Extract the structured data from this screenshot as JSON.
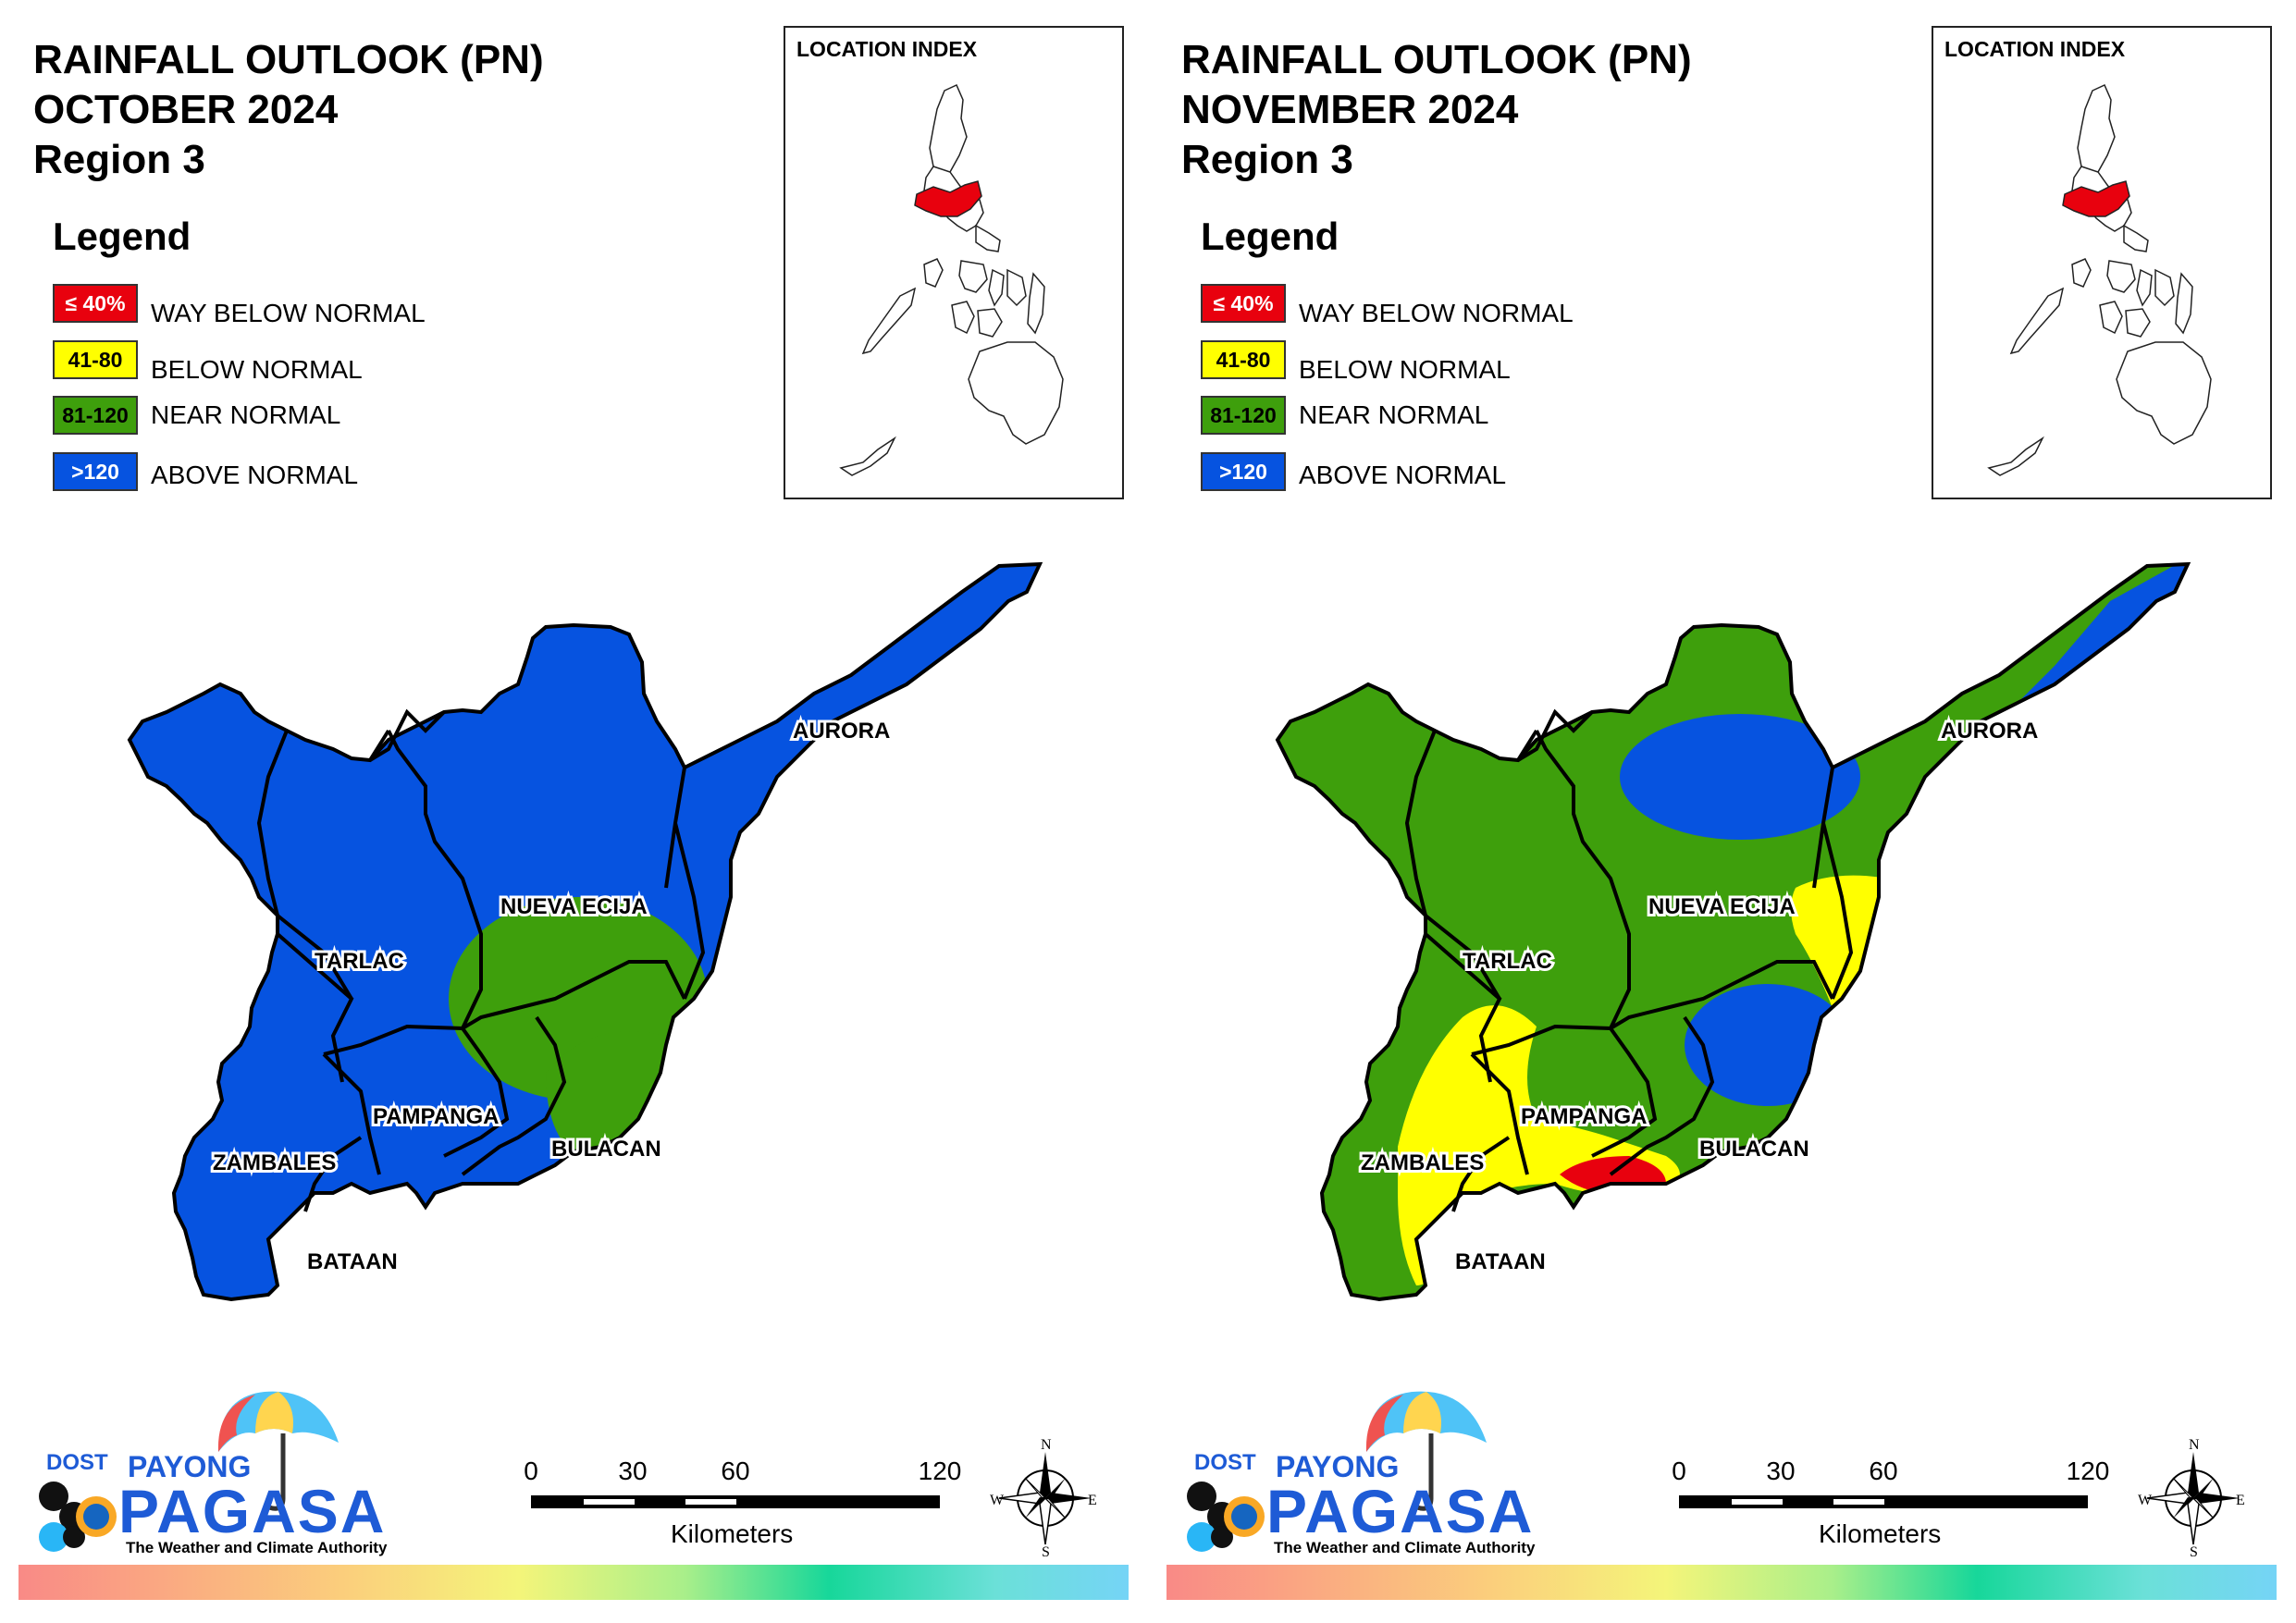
{
  "colors": {
    "way_below": "#e8010e",
    "below": "#ffff00",
    "near": "#3e9f0c",
    "above": "#0653e0"
  },
  "panels": [
    {
      "title_line1": "RAINFALL OUTLOOK (PN)",
      "title_line2": "OCTOBER 2024",
      "title_line3": "Region 3",
      "legend_title": "Legend",
      "legend": [
        {
          "range": "≤ 40%",
          "label": "WAY BELOW NORMAL",
          "color": "#e8010e",
          "text_color": "#ffffff"
        },
        {
          "range": "41-80",
          "label": "BELOW NORMAL",
          "color": "#ffff00",
          "text_color": "#000000"
        },
        {
          "range": "81-120",
          "label": "NEAR NORMAL",
          "color": "#3e9f0c",
          "text_color": "#000000"
        },
        {
          "range": ">120",
          "label": "ABOVE NORMAL",
          "color": "#0653e0",
          "text_color": "#ffffff"
        }
      ],
      "inset_title": "LOCATION INDEX",
      "provinces": {
        "aurora": "AURORA",
        "nueva_ecija": "NUEVA ECIJA",
        "tarlac": "TARLAC",
        "pampanga": "PAMPANGA",
        "zambales": "ZAMBALES",
        "bulacan": "BULACAN",
        "bataan": "BATAAN"
      },
      "scale": {
        "ticks": [
          "0",
          "30",
          "60",
          "120"
        ],
        "unit": "Kilometers"
      },
      "compass": {
        "n": "N",
        "e": "E",
        "s": "S",
        "w": "W"
      },
      "logo": {
        "dost": "DOST",
        "payong": "PAYONG",
        "pagasa": "PAGASA",
        "tagline": "The Weather and Climate Authority"
      },
      "outlook": "above"
    },
    {
      "title_line1": "RAINFALL OUTLOOK (PN)",
      "title_line2": "NOVEMBER 2024",
      "title_line3": "Region 3",
      "legend_title": "Legend",
      "legend": [
        {
          "range": "≤ 40%",
          "label": "WAY BELOW NORMAL",
          "color": "#e8010e",
          "text_color": "#ffffff"
        },
        {
          "range": "41-80",
          "label": "BELOW NORMAL",
          "color": "#ffff00",
          "text_color": "#000000"
        },
        {
          "range": "81-120",
          "label": "NEAR NORMAL",
          "color": "#3e9f0c",
          "text_color": "#000000"
        },
        {
          "range": ">120",
          "label": "ABOVE NORMAL",
          "color": "#0653e0",
          "text_color": "#ffffff"
        }
      ],
      "inset_title": "LOCATION INDEX",
      "provinces": {
        "aurora": "AURORA",
        "nueva_ecija": "NUEVA ECIJA",
        "tarlac": "TARLAC",
        "pampanga": "PAMPANGA",
        "zambales": "ZAMBALES",
        "bulacan": "BULACAN",
        "bataan": "BATAAN"
      },
      "scale": {
        "ticks": [
          "0",
          "30",
          "60",
          "120"
        ],
        "unit": "Kilometers"
      },
      "compass": {
        "n": "N",
        "e": "E",
        "s": "S",
        "w": "W"
      },
      "logo": {
        "dost": "DOST",
        "payong": "PAYONG",
        "pagasa": "PAGASA",
        "tagline": "The Weather and Climate Authority"
      },
      "outlook": "mixed"
    }
  ]
}
